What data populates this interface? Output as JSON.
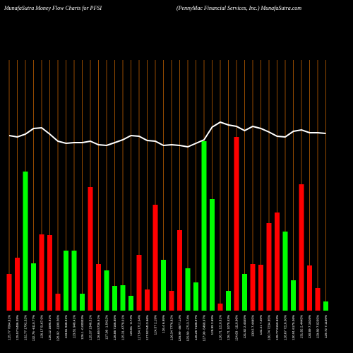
{
  "chart_data": {
    "type": "bar",
    "title": "MunafaSutra  Money Flow  Charts for PFSI",
    "subtitle": "(PennyMac Financial Services, Inc.) MunafaSutra.com",
    "categories": [
      "125.77 7064.61%",
      "125.57 5486.39%",
      "132.77 1792.32%",
      "132.76 -6110.77%",
      "126.17 5167.9%",
      "126.12 1695.91%",
      "126.92 -1190.56%",
      "123.81 948.91%",
      "123.81 948.41%",
      "126.1 -0.00333%",
      "125.37 1346.51%",
      "126.65 5736.91%",
      "127.08 -1.5422%",
      "126.86 7166.85%",
      "125.31 4778.01%",
      "125.61 -3.74%",
      "127.54 1712.04%",
      "127.92 5413.66%",
      "124.57 2.19%",
      "126.4 6.95%",
      "126.34 7776.82%",
      "126.99 -4677.14%",
      "125.80 -2713.74%",
      "126.26 7108.97%",
      "127.99 -5468.97%",
      "129.99 2.69%",
      "126.71 1210.81%",
      "126.71 1078.53%",
      "124.63 -1110.96%",
      "131.82 2.4445%",
      "130.5 7.4465%",
      "132.21 7.45%",
      "130.74 7234.65%",
      "128.77 6150.63%",
      "128.67 7216.30%",
      "130.91 6175.36%",
      "131.82 2.4445%",
      "130.89 7.1626%",
      "129.89 7.0235%",
      "129.72 7.1105%"
    ],
    "bars": {
      "values": [
        52,
        75,
        197,
        67,
        108,
        107,
        24,
        85,
        85,
        24,
        175,
        66,
        57,
        35,
        36,
        21,
        79,
        30,
        150,
        72,
        28,
        114,
        60,
        40,
        240,
        158,
        10,
        28,
        246,
        52,
        66,
        65,
        124,
        139,
        112,
        43,
        179,
        64,
        32,
        13
      ],
      "colors": [
        "#ff0000",
        "#ff0000",
        "#00ff00",
        "#00ff00",
        "#ff0000",
        "#ff0000",
        "#ff0000",
        "#00ff00",
        "#00ff00",
        "#00ff00",
        "#ff0000",
        "#ff0000",
        "#00ff00",
        "#00ff00",
        "#00ff00",
        "#00ff00",
        "#ff0000",
        "#ff0000",
        "#ff0000",
        "#00ff00",
        "#ff0000",
        "#ff0000",
        "#00ff00",
        "#00ff00",
        "#00ff00",
        "#00ff00",
        "#ff0000",
        "#00ff00",
        "#ff0000",
        "#00ff00",
        "#ff0000",
        "#ff0000",
        "#ff0000",
        "#ff0000",
        "#00ff00",
        "#00ff00",
        "#ff0000",
        "#ff0000",
        "#ff0000",
        "#00ff00"
      ]
    },
    "line": {
      "color": "#ffffff",
      "values": [
        248,
        246,
        250,
        258,
        259,
        250,
        240,
        237,
        238,
        238,
        240,
        235,
        234,
        238,
        242,
        248,
        247,
        241,
        240,
        234,
        235,
        234,
        232,
        237,
        242,
        260,
        267,
        263,
        261,
        255,
        261,
        258,
        253,
        247,
        246,
        254,
        256,
        252,
        252,
        251
      ]
    },
    "ylim": [
      0,
      440
    ],
    "grid_color": "#b85c00"
  }
}
